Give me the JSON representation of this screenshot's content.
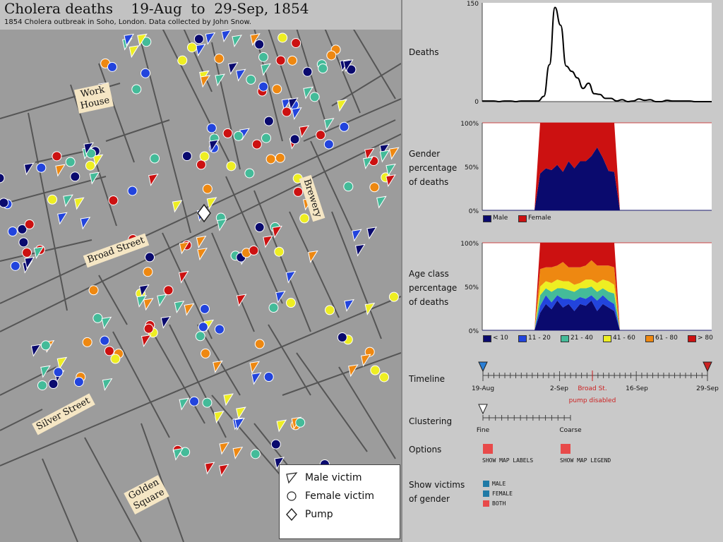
{
  "map": {
    "title": "Cholera deaths    19-Aug  to  29-Sep, 1854",
    "subtitle": "1854 Cholera outbreak in Soho, London. Data collected by John Snow.",
    "labels": {
      "work_house": "Work\nHouse",
      "broad_street": "Broad Street",
      "brewery": "Brewery",
      "silver_street": "Silver Street",
      "golden_square": "Golden\nSquare"
    },
    "legend": {
      "male": "Male victim",
      "female": "Female victim",
      "pump": "Pump"
    },
    "colors": {
      "age_lt10": "#0a0a6e",
      "age_11_20": "#2244dd",
      "age_21_40": "#44bb99",
      "age_41_60": "#eeee22",
      "age_61_80": "#ee8811",
      "age_gt80": "#cc1111",
      "map_bg": "#9c9c9c",
      "street": "#555555"
    }
  },
  "charts": {
    "deaths": {
      "label": "Deaths",
      "ymax": "150",
      "ymin": "0"
    },
    "gender": {
      "label": "Gender\npercentage\nof deaths",
      "y100": "100%",
      "y50": "50%",
      "y0": "0%",
      "legend": [
        "Male",
        "Female"
      ]
    },
    "age": {
      "label": "Age class\npercentage\nof deaths",
      "y100": "100%",
      "y50": "50%",
      "y0": "0%",
      "legend": [
        "< 10",
        "11 - 20",
        "21 - 40",
        "41 - 60",
        "61 - 80",
        "> 80"
      ]
    }
  },
  "controls": {
    "timeline": {
      "label": "Timeline",
      "ticks": [
        "19-Aug",
        "2-Sep",
        "16-Sep",
        "29-Sep"
      ],
      "event_line1": "Broad St.",
      "event_line2": "pump disabled"
    },
    "clustering": {
      "label": "Clustering",
      "fine": "Fine",
      "coarse": "Coarse"
    },
    "options": {
      "label": "Options",
      "show_map_labels": "SHOW MAP LABELS",
      "show_map_legend": "SHOW MAP LEGEND"
    },
    "gender_filter": {
      "label": "Show victims\nof gender",
      "items": [
        "MALE",
        "FEMALE",
        "BOTH"
      ]
    }
  },
  "chart_data": [
    {
      "type": "line",
      "title": "",
      "ylabel": "Deaths",
      "ylim": [
        0,
        150
      ],
      "x": [
        "19-Aug",
        "20-Aug",
        "21-Aug",
        "22-Aug",
        "23-Aug",
        "24-Aug",
        "25-Aug",
        "26-Aug",
        "27-Aug",
        "28-Aug",
        "29-Aug",
        "30-Aug",
        "31-Aug",
        "1-Sep",
        "2-Sep",
        "3-Sep",
        "4-Sep",
        "5-Sep",
        "6-Sep",
        "7-Sep",
        "8-Sep",
        "9-Sep",
        "10-Sep",
        "11-Sep",
        "12-Sep",
        "13-Sep",
        "14-Sep",
        "15-Sep",
        "16-Sep",
        "17-Sep",
        "18-Sep",
        "19-Sep",
        "20-Sep",
        "21-Sep",
        "22-Sep",
        "23-Sep",
        "24-Sep",
        "25-Sep",
        "26-Sep",
        "27-Sep",
        "28-Sep",
        "29-Sep"
      ],
      "series": [
        {
          "values": [
            1,
            1,
            1,
            0,
            1,
            1,
            0,
            1,
            1,
            1,
            1,
            8,
            56,
            143,
            116,
            54,
            46,
            36,
            20,
            28,
            12,
            11,
            5,
            5,
            1,
            3,
            0,
            1,
            4,
            2,
            3,
            0,
            0,
            2,
            1,
            1,
            1,
            1,
            0,
            0,
            0,
            0
          ]
        }
      ]
    },
    {
      "type": "area",
      "title": "Gender percentage of deaths",
      "ylim": [
        0,
        100
      ],
      "x": [
        "30-Aug",
        "31-Aug",
        "1-Sep",
        "2-Sep",
        "3-Sep",
        "4-Sep",
        "5-Sep",
        "6-Sep",
        "7-Sep",
        "8-Sep",
        "9-Sep",
        "10-Sep",
        "11-Sep",
        "12-Sep"
      ],
      "series": [
        {
          "name": "Male",
          "values": [
            42,
            48,
            46,
            52,
            44,
            56,
            48,
            56,
            56,
            62,
            72,
            60,
            45,
            44
          ]
        },
        {
          "name": "Female",
          "values": [
            58,
            52,
            54,
            48,
            56,
            44,
            52,
            44,
            44,
            38,
            28,
            40,
            55,
            56
          ]
        }
      ]
    },
    {
      "type": "area",
      "title": "Age class percentage of deaths",
      "ylim": [
        0,
        100
      ],
      "x": [
        "30-Aug",
        "31-Aug",
        "1-Sep",
        "2-Sep",
        "3-Sep",
        "4-Sep",
        "5-Sep",
        "6-Sep",
        "7-Sep",
        "8-Sep",
        "9-Sep",
        "10-Sep",
        "11-Sep",
        "12-Sep"
      ],
      "series": [
        {
          "name": "< 10",
          "values": [
            20,
            30,
            24,
            34,
            26,
            30,
            22,
            30,
            28,
            34,
            22,
            30,
            26,
            22
          ]
        },
        {
          "name": "11 - 20",
          "values": [
            8,
            10,
            8,
            6,
            10,
            6,
            12,
            8,
            8,
            6,
            12,
            10,
            8,
            8
          ]
        },
        {
          "name": "21 - 40",
          "values": [
            12,
            8,
            12,
            8,
            12,
            10,
            10,
            10,
            12,
            10,
            10,
            8,
            10,
            12
          ]
        },
        {
          "name": "41 - 60",
          "values": [
            10,
            8,
            10,
            10,
            8,
            10,
            8,
            6,
            10,
            8,
            10,
            10,
            12,
            10
          ]
        },
        {
          "name": "61 - 80",
          "values": [
            20,
            16,
            18,
            16,
            22,
            16,
            20,
            18,
            16,
            22,
            20,
            16,
            18,
            20
          ]
        },
        {
          "name": "> 80",
          "values": [
            30,
            28,
            28,
            26,
            22,
            28,
            28,
            28,
            26,
            20,
            26,
            26,
            26,
            28
          ]
        }
      ]
    }
  ]
}
